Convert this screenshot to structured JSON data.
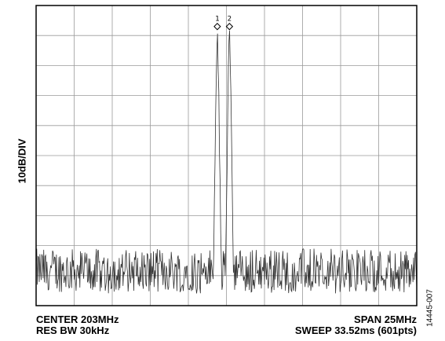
{
  "chart_data": {
    "type": "line",
    "title": "",
    "ylabel": "10dB/DIV",
    "xlabel": "",
    "grid": true,
    "grid_divisions": {
      "x": 10,
      "y": 10
    },
    "x_axis": {
      "center": "CENTER 203MHz",
      "span": "SPAN 25MHz",
      "unit": "MHz",
      "range": [
        190.5,
        215.5
      ]
    },
    "y_axis": {
      "unit": "dB",
      "per_division": 10,
      "range_divisions": [
        0,
        10
      ]
    },
    "settings": {
      "res_bw": "RES BW 30kHz",
      "sweep": "SWEEP 33.52ms (601pts)"
    },
    "markers": [
      {
        "label": "1",
        "x_mhz": 202.4,
        "level_div": 9.3
      },
      {
        "label": "2",
        "x_mhz": 203.2,
        "level_div": 9.3
      }
    ],
    "series": [
      {
        "noise_floor_div": 1.0,
        "noise_peak_div": 2.0,
        "points": 601,
        "tones_mhz": [
          202.4,
          203.2
        ],
        "tone_peak_div": 9.3
      }
    ],
    "trace_color": "#333333",
    "grid_color": "#9a9a9a"
  },
  "figure_id": "14445-007"
}
